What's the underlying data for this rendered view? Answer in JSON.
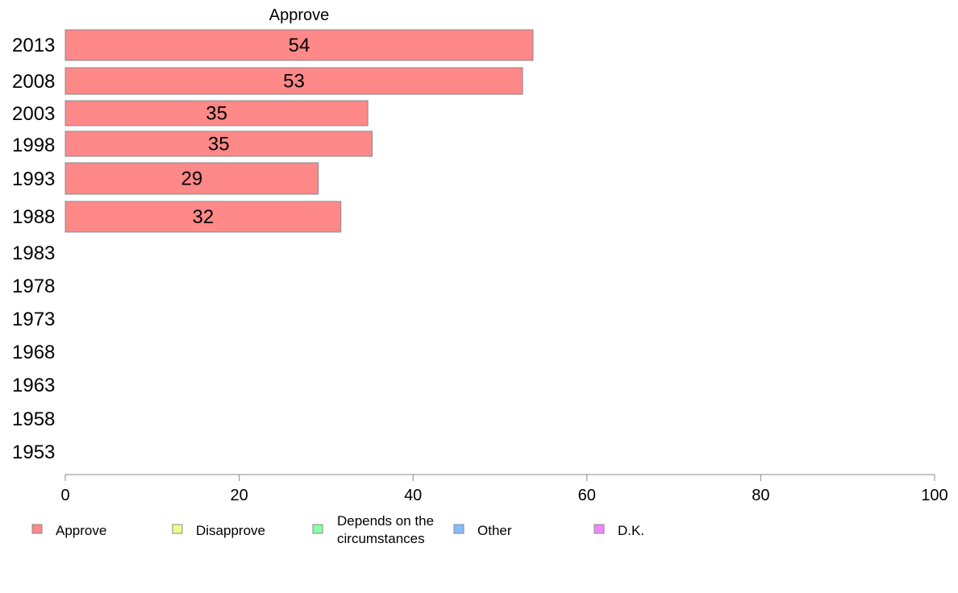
{
  "chart_data": {
    "type": "bar",
    "orientation": "horizontal",
    "panel_title": "Approve",
    "categories": [
      "2013",
      "2008",
      "2003",
      "1998",
      "1993",
      "1988",
      "1983",
      "1978",
      "1973",
      "1968",
      "1963",
      "1958",
      "1953"
    ],
    "series": [
      {
        "name": "Approve",
        "values": [
          54,
          53,
          35,
          35,
          29,
          32,
          null,
          null,
          null,
          null,
          null,
          null,
          null
        ],
        "color": "#ff8888"
      }
    ],
    "bar_values": [
      53.8,
      52.6,
      34.8,
      35.3,
      29.1,
      31.7,
      null,
      null,
      null,
      null,
      null,
      null,
      null
    ],
    "xlim": [
      0,
      100
    ],
    "xticks": [
      "0",
      "20",
      "40",
      "60",
      "80",
      "100"
    ],
    "grid": false,
    "legend": {
      "placement": "bottom",
      "items": [
        {
          "label": "Approve",
          "color": "#ff8888"
        },
        {
          "label": "Disapprove",
          "color": "#ecff88"
        },
        {
          "label": "Depends on the circumstances",
          "lines": [
            "Depends on the",
            "circumstances"
          ],
          "color": "#88ffaa"
        },
        {
          "label": "Other",
          "color": "#88bbff"
        },
        {
          "label": "D.K.",
          "color": "#f088ff"
        }
      ]
    },
    "bar_border_color": "#888888",
    "axis_color": "#888888"
  }
}
